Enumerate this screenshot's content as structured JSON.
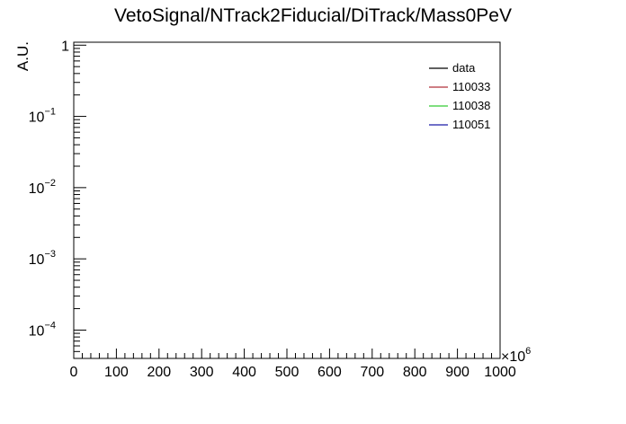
{
  "chart_data": {
    "type": "line",
    "title": "VetoSignal/NTrack2Fiducial/DiTrack/Mass0PeV",
    "xlabel": "",
    "ylabel": "A.U.",
    "x_multiplier_label": "×10",
    "x_multiplier_exponent": "6",
    "xlim": [
      0,
      1000
    ],
    "ylim": [
      4e-05,
      1.1
    ],
    "y_scale": "log",
    "grid": false,
    "legend_placement": "top-right",
    "x_ticks": [
      {
        "value": 0,
        "label": "0"
      },
      {
        "value": 100,
        "label": "100"
      },
      {
        "value": 200,
        "label": "200"
      },
      {
        "value": 300,
        "label": "300"
      },
      {
        "value": 400,
        "label": "400"
      },
      {
        "value": 500,
        "label": "500"
      },
      {
        "value": 600,
        "label": "600"
      },
      {
        "value": 700,
        "label": "700"
      },
      {
        "value": 800,
        "label": "800"
      },
      {
        "value": 900,
        "label": "900"
      },
      {
        "value": 1000,
        "label": "1000"
      }
    ],
    "y_ticks": [
      {
        "value": 1,
        "base": "1",
        "exp": ""
      },
      {
        "value": 0.1,
        "base": "10",
        "exp": "−1"
      },
      {
        "value": 0.01,
        "base": "10",
        "exp": "−2"
      },
      {
        "value": 0.001,
        "base": "10",
        "exp": "−3"
      },
      {
        "value": 0.0001,
        "base": "10",
        "exp": "−4"
      }
    ],
    "series": [
      {
        "name": "data",
        "color": "#000000",
        "values": []
      },
      {
        "name": "110033",
        "color": "#b0303a",
        "values": []
      },
      {
        "name": "110038",
        "color": "#33cc33",
        "values": []
      },
      {
        "name": "110051",
        "color": "#1a1aa8",
        "values": []
      }
    ]
  }
}
